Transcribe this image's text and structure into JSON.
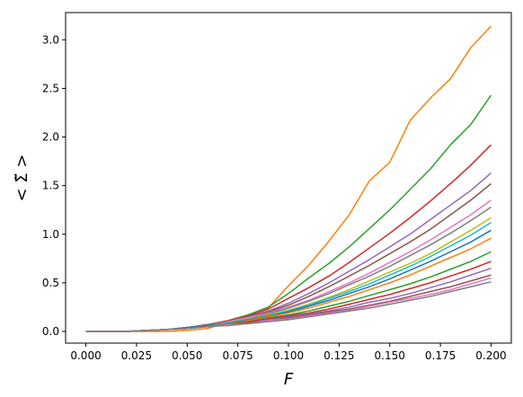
{
  "chart_data": {
    "type": "line",
    "title": "",
    "xlabel": "F",
    "ylabel": "< Σ̃ >",
    "xlim": [
      -0.01,
      0.21
    ],
    "ylim": [
      -0.12,
      3.28
    ],
    "grid": false,
    "legend": "none",
    "x_ticks": [
      {
        "value": 0.0,
        "label": "0.000"
      },
      {
        "value": 0.025,
        "label": "0.025"
      },
      {
        "value": 0.05,
        "label": "0.050"
      },
      {
        "value": 0.075,
        "label": "0.075"
      },
      {
        "value": 0.1,
        "label": "0.100"
      },
      {
        "value": 0.125,
        "label": "0.125"
      },
      {
        "value": 0.15,
        "label": "0.150"
      },
      {
        "value": 0.175,
        "label": "0.175"
      },
      {
        "value": 0.2,
        "label": "0.200"
      }
    ],
    "y_ticks": [
      {
        "value": 0.0,
        "label": "0.0"
      },
      {
        "value": 0.5,
        "label": "0.5"
      },
      {
        "value": 1.0,
        "label": "1.0"
      },
      {
        "value": 1.5,
        "label": "1.5"
      },
      {
        "value": 2.0,
        "label": "2.0"
      },
      {
        "value": 2.5,
        "label": "2.5"
      },
      {
        "value": 3.0,
        "label": "3.0"
      }
    ],
    "x": [
      0.0,
      0.01,
      0.02,
      0.03,
      0.04,
      0.05,
      0.06,
      0.07,
      0.08,
      0.09,
      0.1,
      0.11,
      0.12,
      0.13,
      0.14,
      0.15,
      0.16,
      0.17,
      0.18,
      0.19,
      0.2
    ],
    "series": [
      {
        "color": "#ff7f0e",
        "values": [
          0.0,
          0.0,
          0.0,
          0.0,
          0.0,
          0.01,
          0.03,
          0.09,
          0.15,
          0.24,
          0.47,
          0.68,
          0.93,
          1.2,
          1.55,
          1.74,
          2.17,
          2.4,
          2.6,
          2.92,
          3.14
        ]
      },
      {
        "color": "#2ca02c",
        "values": [
          0.0,
          0.0,
          0.0,
          0.01,
          0.02,
          0.04,
          0.07,
          0.11,
          0.17,
          0.25,
          0.39,
          0.55,
          0.7,
          0.87,
          1.06,
          1.25,
          1.46,
          1.67,
          1.92,
          2.13,
          2.43
        ]
      },
      {
        "color": "#d62728",
        "values": [
          0.0,
          0.0,
          0.0,
          0.01,
          0.02,
          0.04,
          0.07,
          0.11,
          0.16,
          0.23,
          0.34,
          0.45,
          0.57,
          0.71,
          0.86,
          1.01,
          1.17,
          1.34,
          1.52,
          1.71,
          1.92
        ]
      },
      {
        "color": "#9467bd",
        "values": [
          0.0,
          0.0,
          0.0,
          0.01,
          0.02,
          0.04,
          0.07,
          0.1,
          0.15,
          0.21,
          0.29,
          0.39,
          0.5,
          0.62,
          0.74,
          0.87,
          1.0,
          1.15,
          1.3,
          1.45,
          1.63
        ]
      },
      {
        "color": "#8c564b",
        "values": [
          0.0,
          0.0,
          0.0,
          0.01,
          0.02,
          0.04,
          0.07,
          0.1,
          0.14,
          0.2,
          0.27,
          0.36,
          0.46,
          0.57,
          0.68,
          0.8,
          0.92,
          1.05,
          1.2,
          1.35,
          1.52
        ]
      },
      {
        "color": "#e377c2",
        "values": [
          0.0,
          0.0,
          0.0,
          0.01,
          0.02,
          0.04,
          0.06,
          0.1,
          0.14,
          0.19,
          0.25,
          0.32,
          0.41,
          0.5,
          0.6,
          0.71,
          0.82,
          0.94,
          1.07,
          1.2,
          1.35
        ]
      },
      {
        "color": "#7f7f7f",
        "values": [
          0.0,
          0.0,
          0.0,
          0.01,
          0.02,
          0.04,
          0.06,
          0.09,
          0.13,
          0.18,
          0.24,
          0.31,
          0.39,
          0.48,
          0.57,
          0.67,
          0.78,
          0.89,
          1.01,
          1.14,
          1.28
        ]
      },
      {
        "color": "#bcbd22",
        "values": [
          0.0,
          0.0,
          0.0,
          0.01,
          0.02,
          0.04,
          0.06,
          0.09,
          0.13,
          0.17,
          0.22,
          0.28,
          0.35,
          0.43,
          0.52,
          0.61,
          0.7,
          0.8,
          0.92,
          1.04,
          1.17
        ]
      },
      {
        "color": "#17becf",
        "values": [
          0.0,
          0.0,
          0.0,
          0.01,
          0.02,
          0.04,
          0.06,
          0.09,
          0.12,
          0.16,
          0.21,
          0.27,
          0.34,
          0.41,
          0.49,
          0.58,
          0.67,
          0.77,
          0.88,
          0.99,
          1.12
        ]
      },
      {
        "color": "#1f77b4",
        "values": [
          0.0,
          0.0,
          0.0,
          0.01,
          0.02,
          0.04,
          0.06,
          0.08,
          0.12,
          0.16,
          0.2,
          0.26,
          0.32,
          0.39,
          0.46,
          0.54,
          0.63,
          0.72,
          0.82,
          0.92,
          1.04
        ]
      },
      {
        "color": "#ff7f0e",
        "values": [
          0.0,
          0.0,
          0.0,
          0.01,
          0.02,
          0.03,
          0.05,
          0.08,
          0.11,
          0.15,
          0.19,
          0.24,
          0.3,
          0.36,
          0.43,
          0.5,
          0.58,
          0.67,
          0.76,
          0.85,
          0.96
        ]
      },
      {
        "color": "#2ca02c",
        "values": [
          0.0,
          0.0,
          0.0,
          0.01,
          0.02,
          0.03,
          0.05,
          0.08,
          0.1,
          0.14,
          0.17,
          0.21,
          0.26,
          0.31,
          0.37,
          0.43,
          0.49,
          0.56,
          0.64,
          0.72,
          0.82
        ]
      },
      {
        "color": "#d62728",
        "values": [
          0.0,
          0.0,
          0.0,
          0.01,
          0.02,
          0.03,
          0.05,
          0.07,
          0.1,
          0.13,
          0.16,
          0.19,
          0.23,
          0.28,
          0.33,
          0.38,
          0.44,
          0.5,
          0.57,
          0.64,
          0.72
        ]
      },
      {
        "color": "#9467bd",
        "values": [
          0.0,
          0.0,
          0.0,
          0.01,
          0.02,
          0.03,
          0.05,
          0.07,
          0.09,
          0.12,
          0.15,
          0.18,
          0.21,
          0.25,
          0.3,
          0.34,
          0.39,
          0.45,
          0.51,
          0.58,
          0.65
        ]
      },
      {
        "color": "#8c564b",
        "values": [
          0.0,
          0.0,
          0.0,
          0.01,
          0.02,
          0.03,
          0.05,
          0.07,
          0.09,
          0.11,
          0.14,
          0.17,
          0.2,
          0.23,
          0.27,
          0.31,
          0.36,
          0.41,
          0.46,
          0.52,
          0.58
        ]
      },
      {
        "color": "#e377c2",
        "values": [
          0.0,
          0.0,
          0.0,
          0.01,
          0.02,
          0.03,
          0.05,
          0.07,
          0.08,
          0.11,
          0.13,
          0.16,
          0.19,
          0.22,
          0.26,
          0.3,
          0.34,
          0.38,
          0.43,
          0.49,
          0.55
        ]
      },
      {
        "color": "#7f7f7f",
        "values": [
          0.0,
          0.0,
          0.0,
          0.01,
          0.02,
          0.03,
          0.05,
          0.06,
          0.08,
          0.1,
          0.12,
          0.15,
          0.18,
          0.21,
          0.24,
          0.28,
          0.32,
          0.36,
          0.41,
          0.46,
          0.51
        ]
      }
    ]
  }
}
